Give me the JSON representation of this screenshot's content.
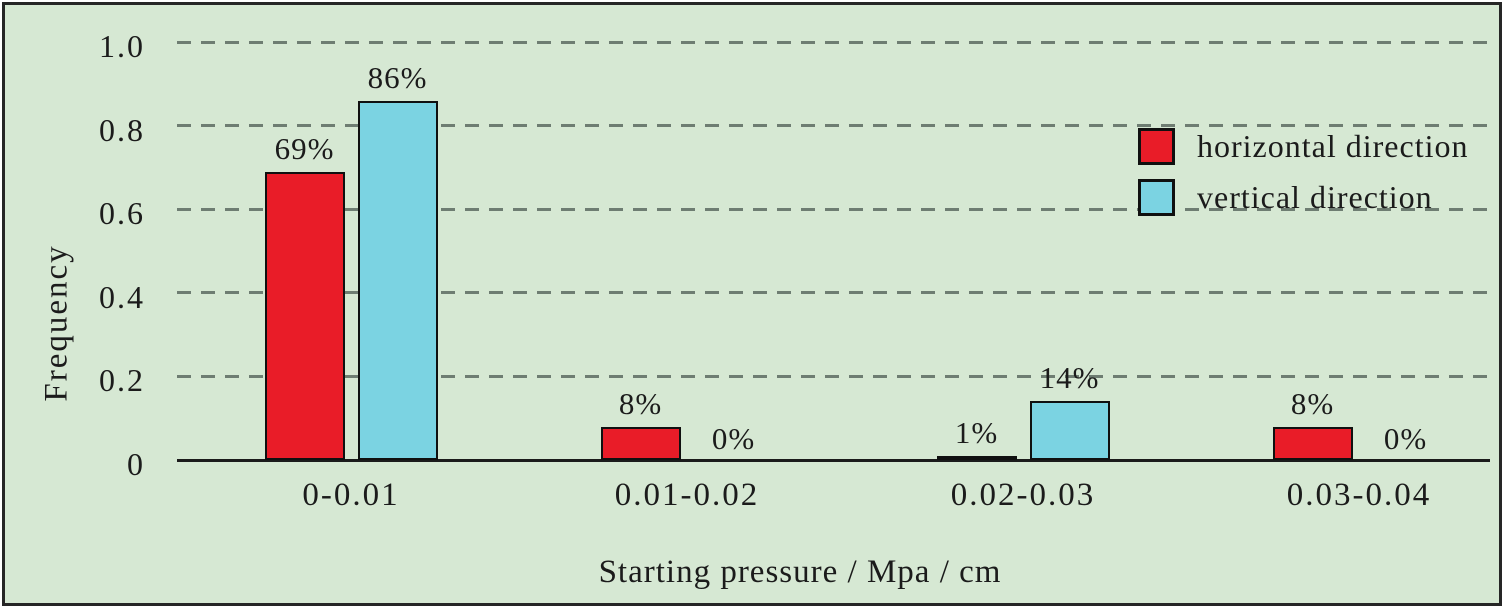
{
  "colors": {
    "background": "#d6e8d3",
    "frame_border": "#262626",
    "grid_dash": "#6e7d72",
    "axis_line": "#1b1b1b",
    "text": "#1b1b1b",
    "bar_border": "#101010",
    "series_horizontal": "#e91c28",
    "series_vertical": "#7bd3e2"
  },
  "chart_data": {
    "type": "bar",
    "title": "",
    "xlabel": "Starting pressure / Mpa / cm",
    "ylabel": "Frequency",
    "categories": [
      "0-0.01",
      "0.01-0.02",
      "0.02-0.03",
      "0.03-0.04"
    ],
    "series": [
      {
        "name": "horizontal direction",
        "color_key": "series_horizontal",
        "values": [
          0.69,
          0.08,
          0.01,
          0.08
        ],
        "labels": [
          "69%",
          "8%",
          "1%",
          "8%"
        ]
      },
      {
        "name": "vertical direction",
        "color_key": "series_vertical",
        "values": [
          0.86,
          0.0,
          0.14,
          0.0
        ],
        "labels": [
          "86%",
          "0%",
          "14%",
          "0%"
        ]
      }
    ],
    "ylim": [
      0,
      1.0
    ],
    "yticks": [
      0,
      0.2,
      0.4,
      0.6,
      0.8,
      1.0
    ],
    "ytick_labels": [
      "0",
      "0.2",
      "0.4",
      "0.6",
      "0.8",
      "1.0"
    ],
    "grid": "horizontal dashed",
    "legend_position": "top-right"
  },
  "legend": {
    "items": [
      {
        "label": "horizontal direction",
        "color_key": "series_horizontal"
      },
      {
        "label": "vertical direction",
        "color_key": "series_vertical"
      }
    ]
  }
}
